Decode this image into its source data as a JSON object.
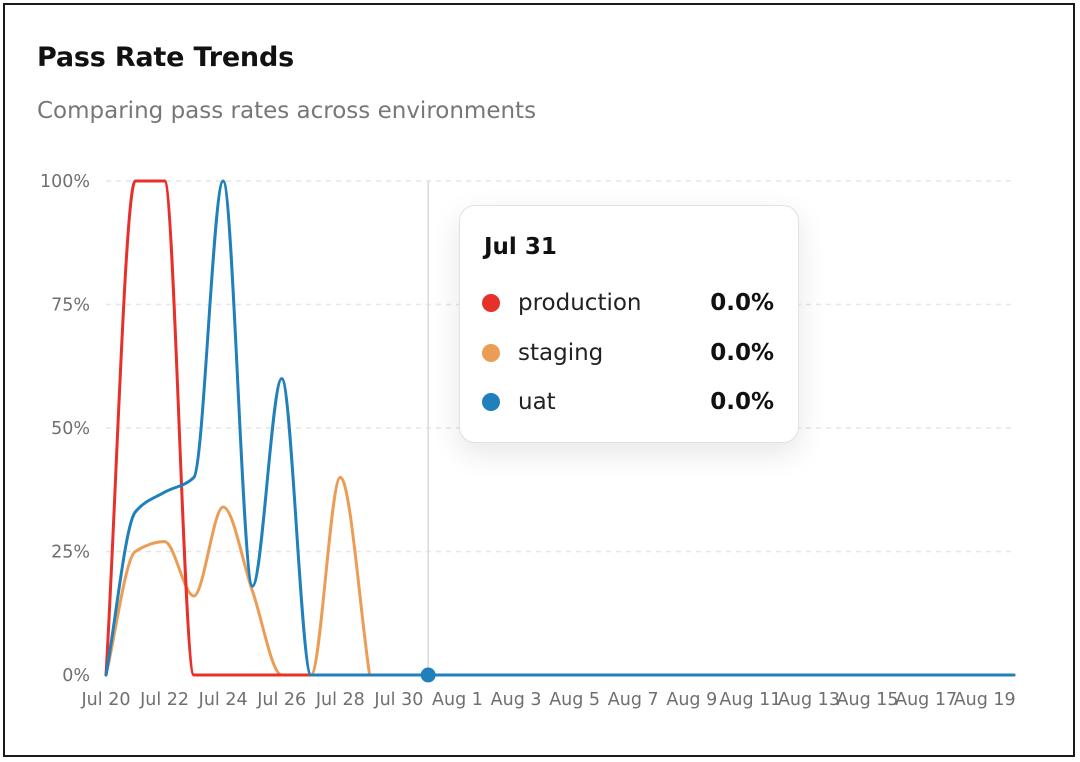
{
  "card": {
    "title": "Pass Rate Trends",
    "subtitle": "Comparing pass rates across environments"
  },
  "tooltip": {
    "date": "Jul 31",
    "rows": [
      {
        "name": "production",
        "value": "0.0%",
        "color": "#e8302a"
      },
      {
        "name": "staging",
        "value": "0.0%",
        "color": "#ec9d55"
      },
      {
        "name": "uat",
        "value": "0.0%",
        "color": "#1f80bc"
      }
    ]
  },
  "chart_data": {
    "type": "line",
    "title": "Pass Rate Trends",
    "subtitle": "Comparing pass rates across environments",
    "x": [
      "Jul 20",
      "Jul 21",
      "Jul 22",
      "Jul 23",
      "Jul 24",
      "Jul 25",
      "Jul 26",
      "Jul 27",
      "Jul 28",
      "Jul 29",
      "Jul 30",
      "Jul 31",
      "Aug 1",
      "Aug 2",
      "Aug 3",
      "Aug 4",
      "Aug 5",
      "Aug 6",
      "Aug 7",
      "Aug 8",
      "Aug 9",
      "Aug 10",
      "Aug 11",
      "Aug 12",
      "Aug 13",
      "Aug 14",
      "Aug 15",
      "Aug 16",
      "Aug 17",
      "Aug 18",
      "Aug 19",
      "Aug 20"
    ],
    "xticks": [
      "Jul 20",
      "Jul 22",
      "Jul 24",
      "Jul 26",
      "Jul 28",
      "Jul 30",
      "Aug 1",
      "Aug 3",
      "Aug 5",
      "Aug 7",
      "Aug 9",
      "Aug 11",
      "Aug 13",
      "Aug 15",
      "Aug 17",
      "Aug 19"
    ],
    "yticks": [
      "0%",
      "25%",
      "50%",
      "75%",
      "100%"
    ],
    "ylim": [
      0,
      100
    ],
    "series": [
      {
        "name": "production",
        "color": "#e8302a",
        "values": [
          0,
          100,
          100,
          0,
          0,
          0,
          0,
          0,
          0,
          0,
          0,
          0,
          0,
          0,
          0,
          0,
          0,
          0,
          0,
          0,
          0,
          0,
          0,
          0,
          0,
          0,
          0,
          0,
          0,
          0,
          0,
          0
        ]
      },
      {
        "name": "staging",
        "color": "#ec9d55",
        "values": [
          0,
          25,
          27,
          16,
          34,
          17,
          0,
          0,
          40,
          0,
          null,
          null,
          null,
          null,
          null,
          null,
          null,
          null,
          null,
          null,
          null,
          null,
          null,
          null,
          null,
          null,
          null,
          null,
          null,
          null,
          null,
          null
        ]
      },
      {
        "name": "uat",
        "color": "#1f80bc",
        "values": [
          0,
          33,
          37,
          40,
          100,
          18,
          60,
          0,
          0,
          0,
          0,
          0,
          0,
          0,
          0,
          0,
          0,
          0,
          0,
          0,
          0,
          0,
          0,
          0,
          0,
          0,
          0,
          0,
          0,
          0,
          0,
          0
        ]
      }
    ],
    "grid": true,
    "highlight": {
      "x": "Jul 31",
      "color": "#1f80bc"
    }
  }
}
